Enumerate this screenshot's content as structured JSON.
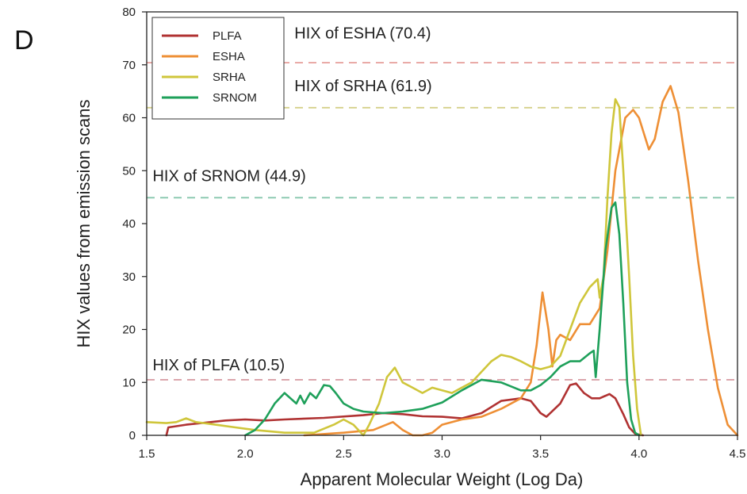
{
  "chart_data": {
    "type": "line",
    "panel_label": "D",
    "xlabel": "Apparent Molecular Weight (Log Da)",
    "ylabel": "HIX values from emission scans",
    "xlim": [
      1.5,
      4.5
    ],
    "ylim": [
      0,
      80
    ],
    "xticks": [
      "1.5",
      "2.0",
      "2.5",
      "3.0",
      "3.5",
      "4.0",
      "4.5"
    ],
    "yticks": [
      "0",
      "10",
      "20",
      "30",
      "40",
      "50",
      "60",
      "70",
      "80"
    ],
    "grid": false,
    "legend_position": "top-left",
    "reference_lines": [
      {
        "label": "HIX of ESHA (70.4)",
        "value": 70.4,
        "color": "#e8a4a0",
        "label_x": 2.25,
        "label_y": 75
      },
      {
        "label": "HIX of SRHA (61.9)",
        "value": 61.9,
        "color": "#d5d08a",
        "label_x": 2.25,
        "label_y": 65
      },
      {
        "label": "HIX of SRNOM (44.9)",
        "value": 44.9,
        "color": "#86c7ad",
        "label_x": 1.53,
        "label_y": 48
      },
      {
        "label": "HIX of PLFA (10.5)",
        "value": 10.5,
        "color": "#d9a0a8",
        "label_x": 1.53,
        "label_y": 12.3
      }
    ],
    "series": [
      {
        "name": "PLFA",
        "color": "#b03232",
        "points": [
          [
            1.6,
            0
          ],
          [
            1.61,
            1.5
          ],
          [
            1.7,
            2
          ],
          [
            1.9,
            2.8
          ],
          [
            2.0,
            3
          ],
          [
            2.1,
            2.8
          ],
          [
            2.2,
            3
          ],
          [
            2.4,
            3.3
          ],
          [
            2.6,
            3.8
          ],
          [
            2.7,
            4.2
          ],
          [
            2.8,
            4
          ],
          [
            2.9,
            3.6
          ],
          [
            3.0,
            3.5
          ],
          [
            3.1,
            3.2
          ],
          [
            3.2,
            4.2
          ],
          [
            3.3,
            6.5
          ],
          [
            3.4,
            7
          ],
          [
            3.45,
            6.5
          ],
          [
            3.5,
            4.2
          ],
          [
            3.53,
            3.5
          ],
          [
            3.6,
            6
          ],
          [
            3.65,
            9.5
          ],
          [
            3.68,
            9.8
          ],
          [
            3.72,
            8
          ],
          [
            3.76,
            7
          ],
          [
            3.8,
            7
          ],
          [
            3.85,
            7.8
          ],
          [
            3.88,
            7
          ],
          [
            3.92,
            4
          ],
          [
            3.95,
            1.5
          ],
          [
            3.98,
            0.3
          ],
          [
            4.02,
            0
          ]
        ]
      },
      {
        "name": "ESHA",
        "color": "#ee8f35",
        "points": [
          [
            2.3,
            0
          ],
          [
            2.5,
            0.5
          ],
          [
            2.65,
            1
          ],
          [
            2.75,
            2.5
          ],
          [
            2.8,
            1
          ],
          [
            2.85,
            0
          ],
          [
            2.9,
            0
          ],
          [
            2.95,
            0.5
          ],
          [
            3.0,
            2
          ],
          [
            3.1,
            3
          ],
          [
            3.2,
            3.5
          ],
          [
            3.3,
            5
          ],
          [
            3.4,
            7
          ],
          [
            3.45,
            10
          ],
          [
            3.48,
            17
          ],
          [
            3.51,
            27
          ],
          [
            3.54,
            20
          ],
          [
            3.56,
            13
          ],
          [
            3.58,
            18
          ],
          [
            3.6,
            19
          ],
          [
            3.65,
            18
          ],
          [
            3.7,
            21
          ],
          [
            3.75,
            21
          ],
          [
            3.8,
            24
          ],
          [
            3.84,
            35
          ],
          [
            3.88,
            50
          ],
          [
            3.93,
            60
          ],
          [
            3.97,
            61.5
          ],
          [
            4.0,
            60
          ],
          [
            4.05,
            54
          ],
          [
            4.08,
            56
          ],
          [
            4.12,
            63
          ],
          [
            4.16,
            66
          ],
          [
            4.2,
            61
          ],
          [
            4.25,
            48
          ],
          [
            4.3,
            33
          ],
          [
            4.35,
            20
          ],
          [
            4.4,
            9
          ],
          [
            4.45,
            2
          ],
          [
            4.5,
            0
          ]
        ]
      },
      {
        "name": "SRHA",
        "color": "#cfc63b",
        "points": [
          [
            1.5,
            2.5
          ],
          [
            1.6,
            2.3
          ],
          [
            1.65,
            2.5
          ],
          [
            1.7,
            3.2
          ],
          [
            1.75,
            2.5
          ],
          [
            1.85,
            2
          ],
          [
            1.95,
            1.5
          ],
          [
            2.05,
            1
          ],
          [
            2.2,
            0.5
          ],
          [
            2.35,
            0.5
          ],
          [
            2.45,
            2
          ],
          [
            2.5,
            3
          ],
          [
            2.55,
            2
          ],
          [
            2.6,
            0
          ],
          [
            2.63,
            2
          ],
          [
            2.68,
            6
          ],
          [
            2.72,
            11
          ],
          [
            2.76,
            12.8
          ],
          [
            2.8,
            10
          ],
          [
            2.85,
            9
          ],
          [
            2.9,
            8
          ],
          [
            2.95,
            9
          ],
          [
            3.0,
            8.5
          ],
          [
            3.05,
            8
          ],
          [
            3.1,
            9
          ],
          [
            3.15,
            10
          ],
          [
            3.2,
            12
          ],
          [
            3.25,
            14
          ],
          [
            3.3,
            15.2
          ],
          [
            3.35,
            14.8
          ],
          [
            3.4,
            14
          ],
          [
            3.45,
            13
          ],
          [
            3.5,
            12.5
          ],
          [
            3.55,
            13
          ],
          [
            3.6,
            15
          ],
          [
            3.65,
            20
          ],
          [
            3.7,
            25
          ],
          [
            3.75,
            28
          ],
          [
            3.79,
            29.5
          ],
          [
            3.8,
            26
          ],
          [
            3.82,
            30
          ],
          [
            3.84,
            45
          ],
          [
            3.86,
            57
          ],
          [
            3.88,
            63.5
          ],
          [
            3.9,
            62
          ],
          [
            3.92,
            50
          ],
          [
            3.95,
            30
          ],
          [
            3.97,
            15
          ],
          [
            3.99,
            5
          ],
          [
            4.01,
            0
          ]
        ]
      },
      {
        "name": "SRNOM",
        "color": "#1ea05a",
        "points": [
          [
            2.0,
            0
          ],
          [
            2.05,
            1
          ],
          [
            2.1,
            3
          ],
          [
            2.15,
            6
          ],
          [
            2.2,
            8
          ],
          [
            2.23,
            7
          ],
          [
            2.26,
            6
          ],
          [
            2.28,
            7.5
          ],
          [
            2.3,
            6
          ],
          [
            2.33,
            8
          ],
          [
            2.36,
            7
          ],
          [
            2.4,
            9.5
          ],
          [
            2.43,
            9.3
          ],
          [
            2.46,
            8
          ],
          [
            2.5,
            6
          ],
          [
            2.55,
            5
          ],
          [
            2.6,
            4.5
          ],
          [
            2.7,
            4.2
          ],
          [
            2.8,
            4.5
          ],
          [
            2.9,
            5
          ],
          [
            3.0,
            6.2
          ],
          [
            3.1,
            8.5
          ],
          [
            3.2,
            10.5
          ],
          [
            3.3,
            10
          ],
          [
            3.4,
            8.5
          ],
          [
            3.45,
            8.5
          ],
          [
            3.5,
            9.5
          ],
          [
            3.55,
            11
          ],
          [
            3.6,
            13
          ],
          [
            3.65,
            14
          ],
          [
            3.7,
            14
          ],
          [
            3.75,
            15.5
          ],
          [
            3.77,
            16
          ],
          [
            3.78,
            11
          ],
          [
            3.8,
            20
          ],
          [
            3.83,
            35
          ],
          [
            3.86,
            43
          ],
          [
            3.88,
            44
          ],
          [
            3.9,
            38
          ],
          [
            3.92,
            25
          ],
          [
            3.94,
            10
          ],
          [
            3.96,
            3
          ],
          [
            3.98,
            0.5
          ],
          [
            4.0,
            0
          ]
        ]
      }
    ]
  }
}
